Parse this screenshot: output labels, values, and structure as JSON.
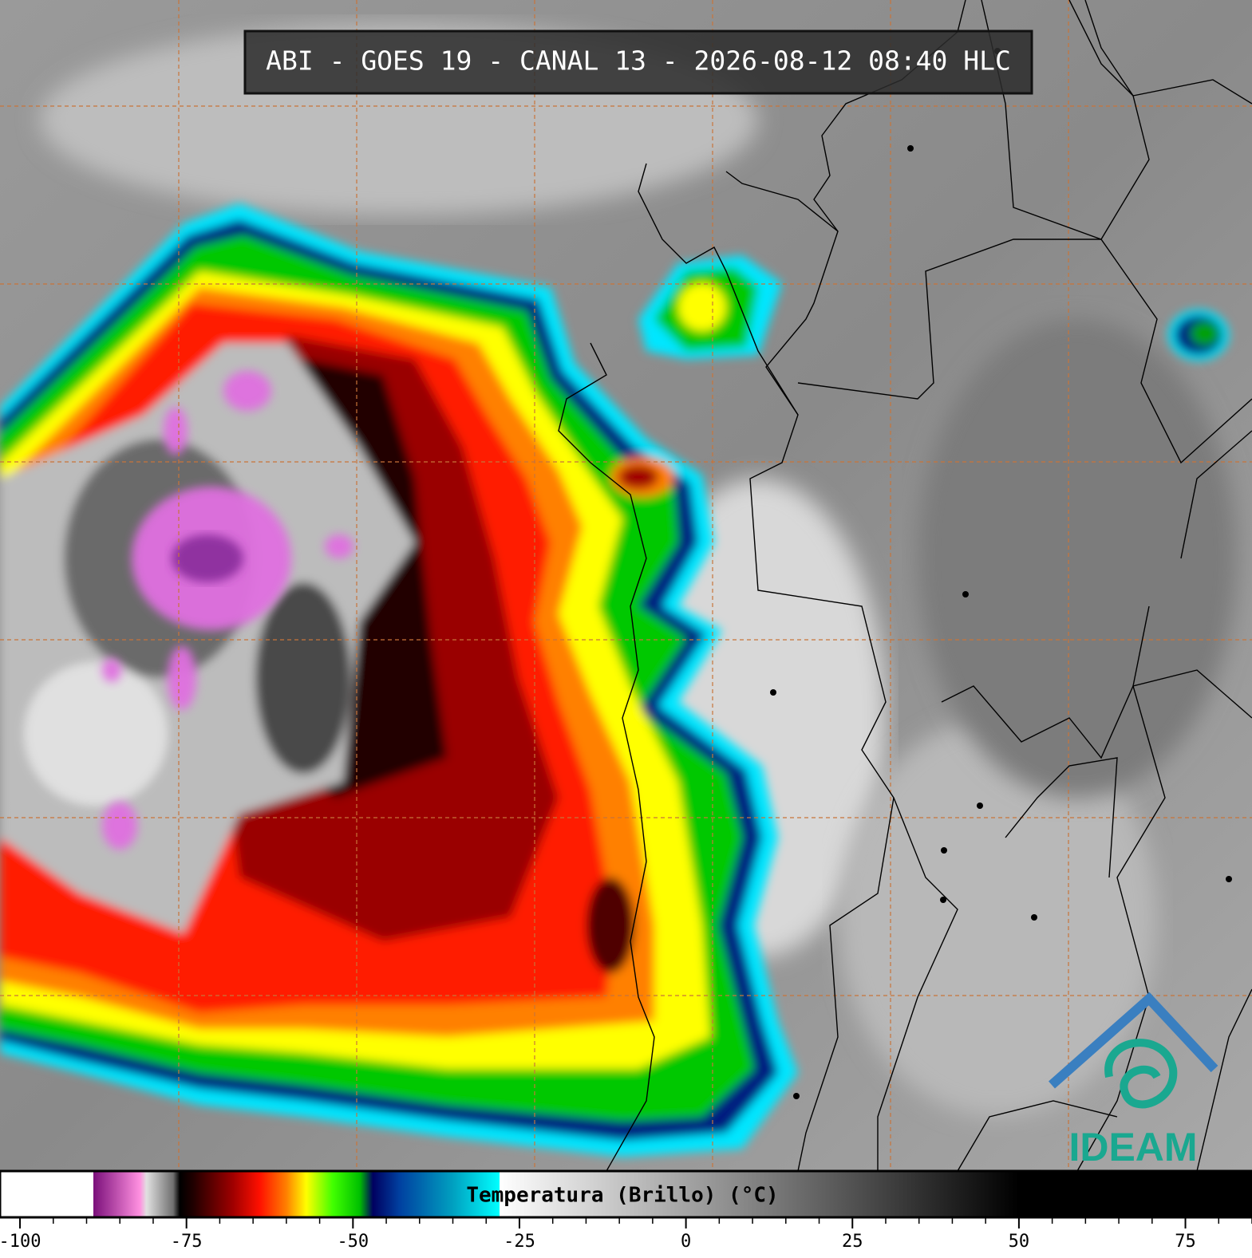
{
  "header": {
    "title": "ABI - GOES 19 - CANAL 13 - 2026-08-12 08:40 HLC"
  },
  "colorbar": {
    "label": "Temperatura (Brillo) (°C)",
    "range": [
      -103,
      85
    ],
    "ticks": [
      -100,
      -75,
      -50,
      -25,
      0,
      25,
      50,
      75
    ],
    "colormap": [
      {
        "value": -103,
        "color": "#ffffff"
      },
      {
        "value": -89,
        "color": "#ffffff"
      },
      {
        "value": -89,
        "color": "#7a0f7a"
      },
      {
        "value": -82,
        "color": "#ff90e0"
      },
      {
        "value": -81,
        "color": "#e0e0e0"
      },
      {
        "value": -77,
        "color": "#707070"
      },
      {
        "value": -76,
        "color": "#000000"
      },
      {
        "value": -74,
        "color": "#200000"
      },
      {
        "value": -68,
        "color": "#a00000"
      },
      {
        "value": -64,
        "color": "#ff1000"
      },
      {
        "value": -60,
        "color": "#ff8000"
      },
      {
        "value": -57,
        "color": "#ffff00"
      },
      {
        "value": -53,
        "color": "#40ff00"
      },
      {
        "value": -49,
        "color": "#00c000"
      },
      {
        "value": -47,
        "color": "#000060"
      },
      {
        "value": -43,
        "color": "#0040a0"
      },
      {
        "value": -35,
        "color": "#00a0c0"
      },
      {
        "value": -28,
        "color": "#00ffff"
      },
      {
        "value": -28,
        "color": "#ffffff"
      },
      {
        "value": 50,
        "color": "#000000"
      },
      {
        "value": 85,
        "color": "#000000"
      }
    ]
  },
  "logo": {
    "text": "IDEAM"
  }
}
